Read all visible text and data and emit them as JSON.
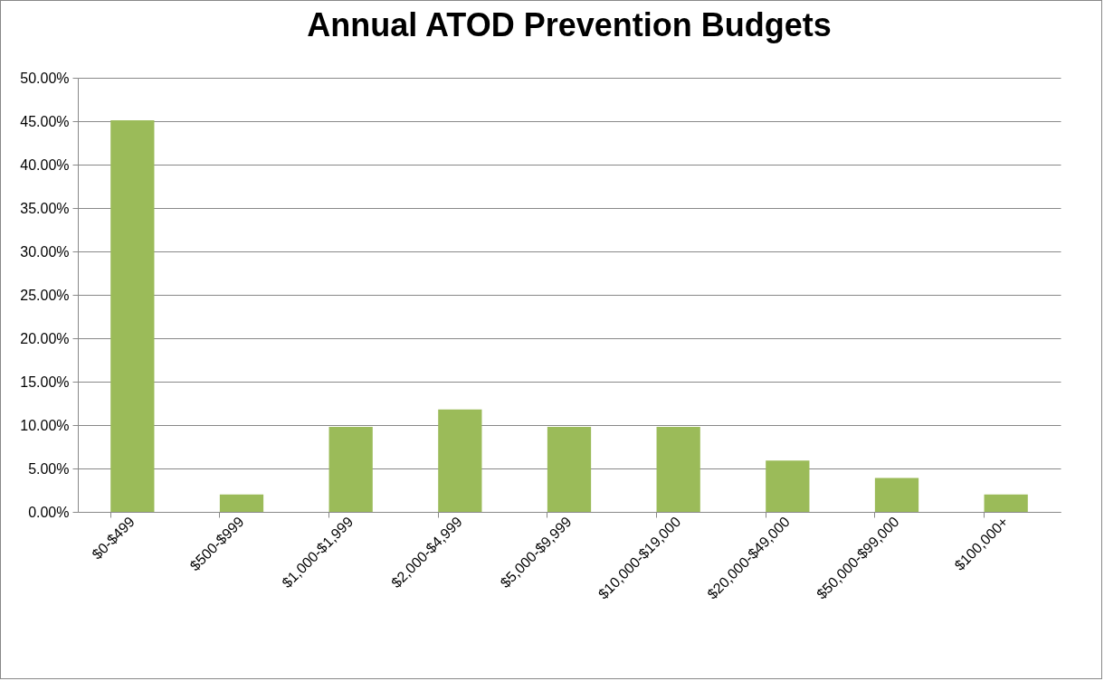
{
  "chart_data": {
    "type": "bar",
    "title": "Annual ATOD Prevention Budgets",
    "categories": [
      "$0-$499",
      "$500-$999",
      "$1,000-$1,999",
      "$2,000-$4,999",
      "$5,000-$9,999",
      "$10,000-$19,000",
      "$20,000-$49,000",
      "$50,000-$99,000",
      "$100,000+"
    ],
    "values": [
      45.1,
      2.0,
      9.8,
      11.8,
      9.8,
      9.8,
      5.9,
      3.9,
      2.0
    ],
    "color": "#9bbb59",
    "ylim": [
      0,
      50
    ],
    "yticks": [
      {
        "value": 0,
        "label": "0.00%"
      },
      {
        "value": 5,
        "label": "5.00%"
      },
      {
        "value": 10,
        "label": "10.00%"
      },
      {
        "value": 15,
        "label": "15.00%"
      },
      {
        "value": 20,
        "label": "20.00%"
      },
      {
        "value": 25,
        "label": "25.00%"
      },
      {
        "value": 30,
        "label": "30.00%"
      },
      {
        "value": 35,
        "label": "35.00%"
      },
      {
        "value": 40,
        "label": "40.00%"
      },
      {
        "value": 45,
        "label": "45.00%"
      },
      {
        "value": 50,
        "label": "50.00%"
      }
    ],
    "grid": "y"
  }
}
